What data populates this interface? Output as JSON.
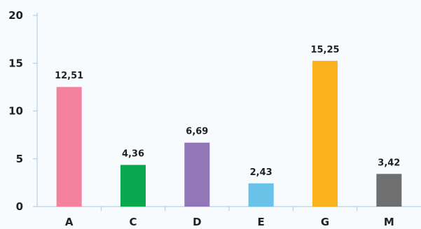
{
  "chart_data": {
    "type": "bar",
    "title": "",
    "xlabel": "",
    "ylabel": "",
    "categories": [
      "A",
      "C",
      "D",
      "E",
      "G",
      "M"
    ],
    "values": [
      12.51,
      4.36,
      6.69,
      2.43,
      15.25,
      3.42
    ],
    "value_labels": [
      "12,51",
      "4,36",
      "6,69",
      "2,43",
      "15,25",
      "3,42"
    ],
    "ylim": [
      0,
      20
    ],
    "yticks": [
      0,
      5,
      10,
      15,
      20
    ],
    "grid": false,
    "legend": "none",
    "colors": [
      "#f4829f",
      "#0aa84e",
      "#9177b8",
      "#69c3e8",
      "#fcb21d",
      "#6f6f6f"
    ],
    "axis_color": "#a9c7e0",
    "background": "#f7fbfe"
  }
}
